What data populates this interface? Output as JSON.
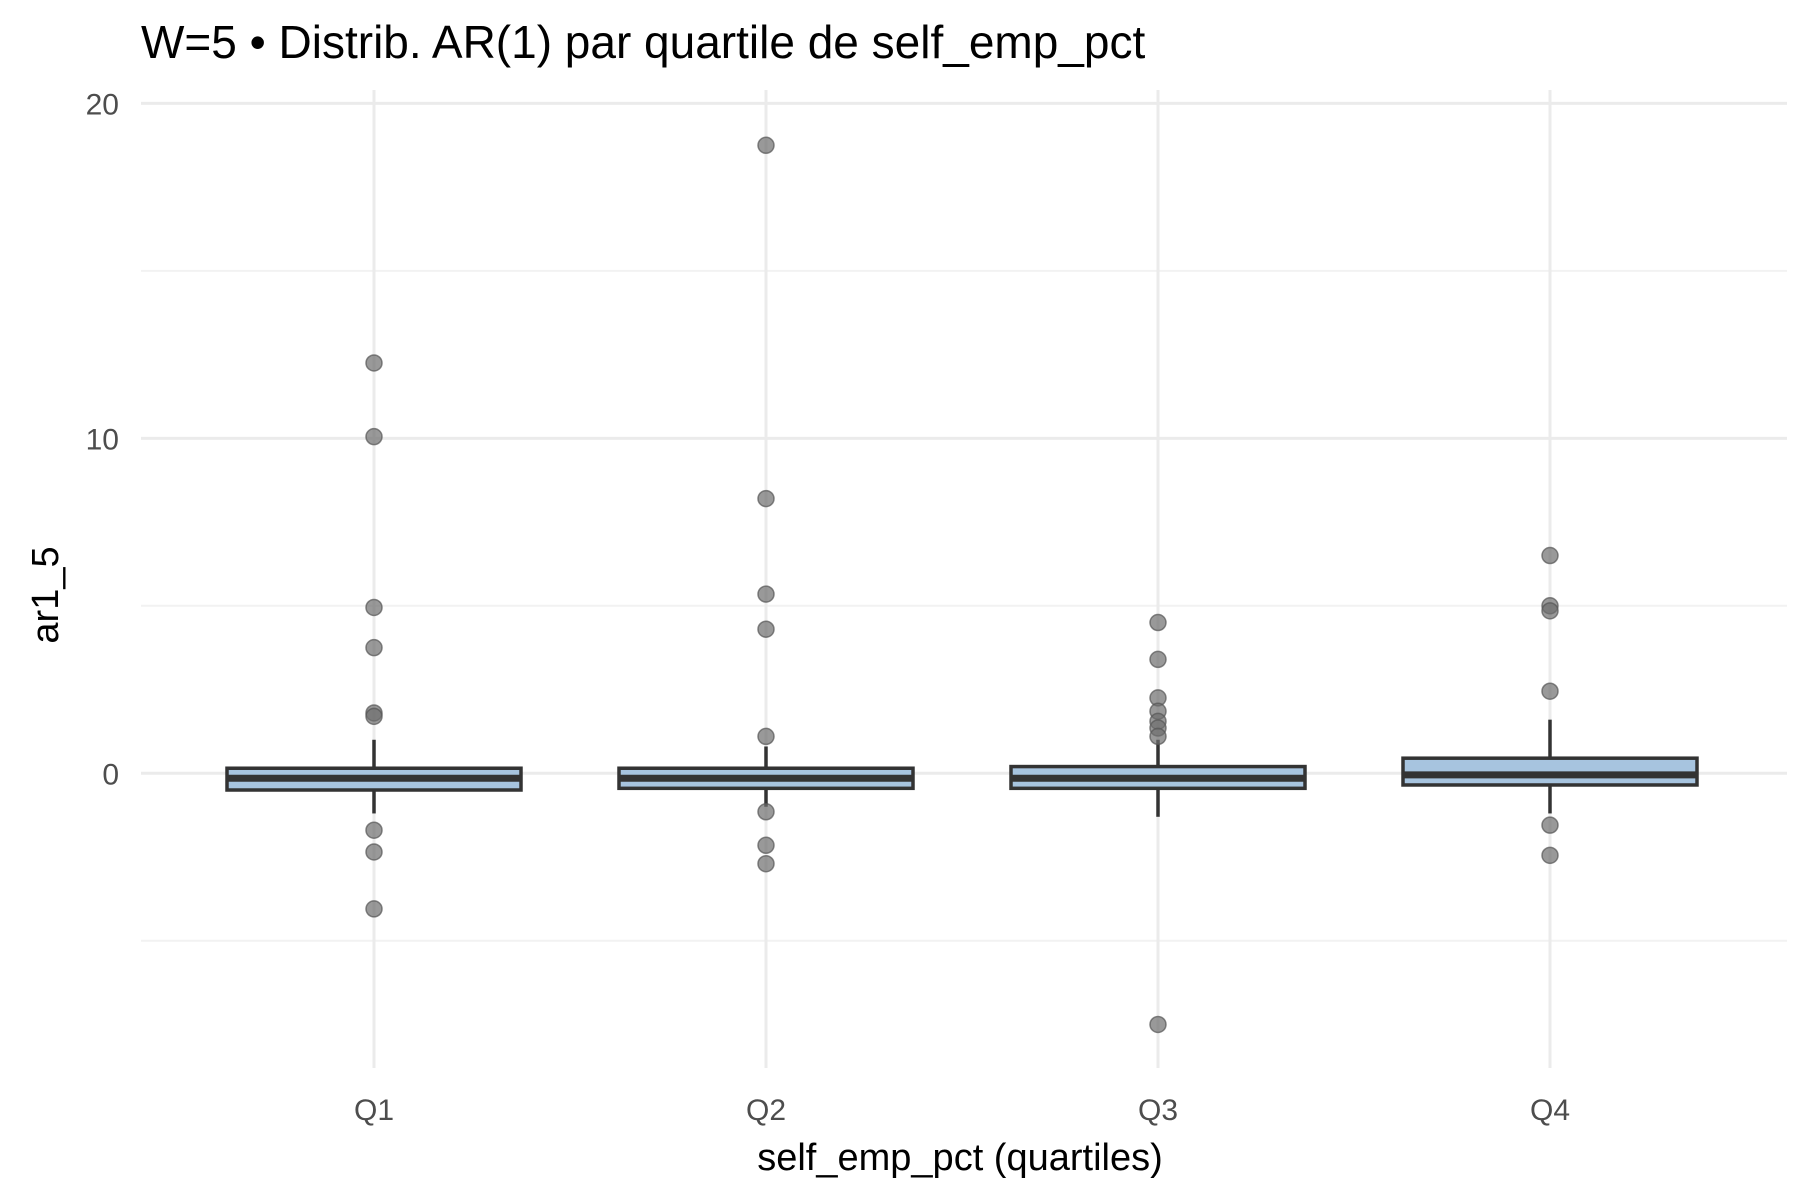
{
  "chart_data": {
    "type": "boxplot",
    "title": "W=5 • Distrib. AR(1) par quartile de self_emp_pct",
    "xlabel": "self_emp_pct (quartiles)",
    "ylabel": "ar1_5",
    "categories": [
      "Q1",
      "Q2",
      "Q3",
      "Q4"
    ],
    "y_ticks": [
      0,
      10,
      20
    ],
    "y_minor_ticks": [
      -5,
      5,
      15
    ],
    "ylim": [
      -8.8,
      20.4
    ],
    "grid": true,
    "legend": "none",
    "colors": {
      "box_fill": "#a7c4df",
      "box_stroke": "#333333",
      "outlier": "#6e6e6e",
      "grid": "#ebebeb"
    },
    "boxes": [
      {
        "category": "Q1",
        "lower_whisker": -1.2,
        "q1": -0.5,
        "median": -0.15,
        "q3": 0.15,
        "upper_whisker": 1.0,
        "outliers": [
          12.25,
          10.05,
          4.95,
          3.75,
          1.8,
          1.7,
          -1.7,
          -2.35,
          -4.05
        ]
      },
      {
        "category": "Q2",
        "lower_whisker": -1.0,
        "q1": -0.45,
        "median": -0.15,
        "q3": 0.15,
        "upper_whisker": 0.8,
        "outliers": [
          18.75,
          8.2,
          5.35,
          4.3,
          1.1,
          -1.15,
          -2.15,
          -2.7
        ]
      },
      {
        "category": "Q3",
        "lower_whisker": -1.3,
        "q1": -0.45,
        "median": -0.15,
        "q3": 0.2,
        "upper_whisker": 1.0,
        "outliers": [
          4.5,
          3.4,
          2.25,
          1.85,
          1.55,
          1.35,
          1.1,
          -7.5
        ]
      },
      {
        "category": "Q4",
        "lower_whisker": -1.2,
        "q1": -0.35,
        "median": -0.05,
        "q3": 0.45,
        "upper_whisker": 1.6,
        "outliers": [
          6.5,
          5.0,
          4.85,
          2.45,
          -1.55,
          -2.45
        ]
      }
    ]
  }
}
